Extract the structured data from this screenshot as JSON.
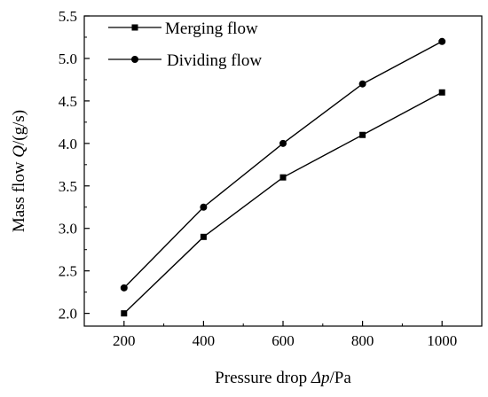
{
  "chart_data": {
    "type": "line",
    "x": [
      200,
      400,
      600,
      800,
      1000
    ],
    "series": [
      {
        "name": "Merging flow",
        "marker": "square",
        "values": [
          2.0,
          2.9,
          3.6,
          4.1,
          4.6
        ]
      },
      {
        "name": "Dividing flow",
        "marker": "circle",
        "values": [
          2.3,
          3.25,
          4.0,
          4.7,
          5.2
        ]
      }
    ],
    "xlabel_parts": [
      "Pressure drop ",
      "Δp",
      "/Pa"
    ],
    "ylabel_parts": [
      "Mass flow ",
      "Q",
      "/(g/s)"
    ],
    "xticks": [
      200,
      400,
      600,
      800,
      1000
    ],
    "yticks": [
      "2.0",
      "2.5",
      "3.0",
      "3.5",
      "4.0",
      "4.5",
      "5.0",
      "5.5"
    ],
    "xlim": [
      100,
      1100
    ],
    "ylim": [
      1.85,
      5.5
    ],
    "grid": false,
    "legend_position": "top-left",
    "colors": {
      "line": "#000000",
      "axis": "#000000"
    }
  }
}
